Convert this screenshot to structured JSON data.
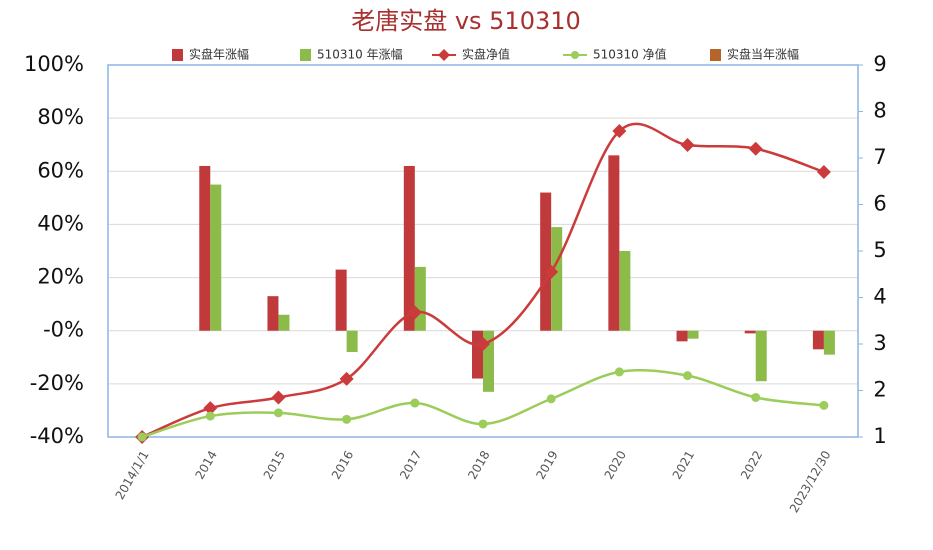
{
  "chart_data": {
    "type": "combo",
    "title": "老唐实盘 vs 510310",
    "categories": [
      "2014/1/1",
      "2014",
      "2015",
      "2016",
      "2017",
      "2018",
      "2019",
      "2020",
      "2021",
      "2022",
      "2023/12/30"
    ],
    "series": [
      {
        "name": "实盘年涨幅",
        "type": "bar",
        "color": "#c0393b",
        "values": [
          null,
          62,
          13,
          23,
          62,
          -18,
          52,
          66,
          -4,
          -1,
          -7
        ]
      },
      {
        "name": "510310 年涨幅",
        "type": "bar",
        "color": "#8dbb4a",
        "values": [
          null,
          55,
          6,
          -8,
          24,
          -23,
          39,
          30,
          -3,
          -19,
          -9
        ]
      },
      {
        "name": "实盘净值",
        "type": "line",
        "axis": "y2",
        "marker": "diamond",
        "color": "#cc3b3b",
        "values": [
          1.0,
          1.62,
          1.85,
          2.25,
          3.68,
          3.0,
          4.55,
          7.58,
          7.28,
          7.2,
          6.7
        ]
      },
      {
        "name": "510310 净值",
        "type": "line",
        "axis": "y2",
        "marker": "circle",
        "color": "#9ccc5a",
        "values": [
          1.0,
          1.45,
          1.52,
          1.38,
          1.73,
          1.28,
          1.82,
          2.4,
          2.32,
          1.85,
          1.68
        ]
      },
      {
        "name": "实盘当年涨幅",
        "type": "bar",
        "color": "#b5652a",
        "values": [
          null,
          null,
          null,
          null,
          null,
          null,
          null,
          null,
          null,
          null,
          null
        ]
      }
    ],
    "ylim": [
      -40,
      100
    ],
    "yticks": [
      {
        "value": -40,
        "label": "-40%"
      },
      {
        "value": -20,
        "label": "-20%"
      },
      {
        "value": 0,
        "label": "-0%"
      },
      {
        "value": 20,
        "label": "20%"
      },
      {
        "value": 40,
        "label": "40%"
      },
      {
        "value": 60,
        "label": "60%"
      },
      {
        "value": 80,
        "label": "80%"
      },
      {
        "value": 100,
        "label": "100%"
      }
    ],
    "y2lim": [
      1,
      9
    ],
    "y2ticks": [
      1,
      2,
      3,
      4,
      5,
      6,
      7,
      8,
      9
    ],
    "grid": true
  }
}
